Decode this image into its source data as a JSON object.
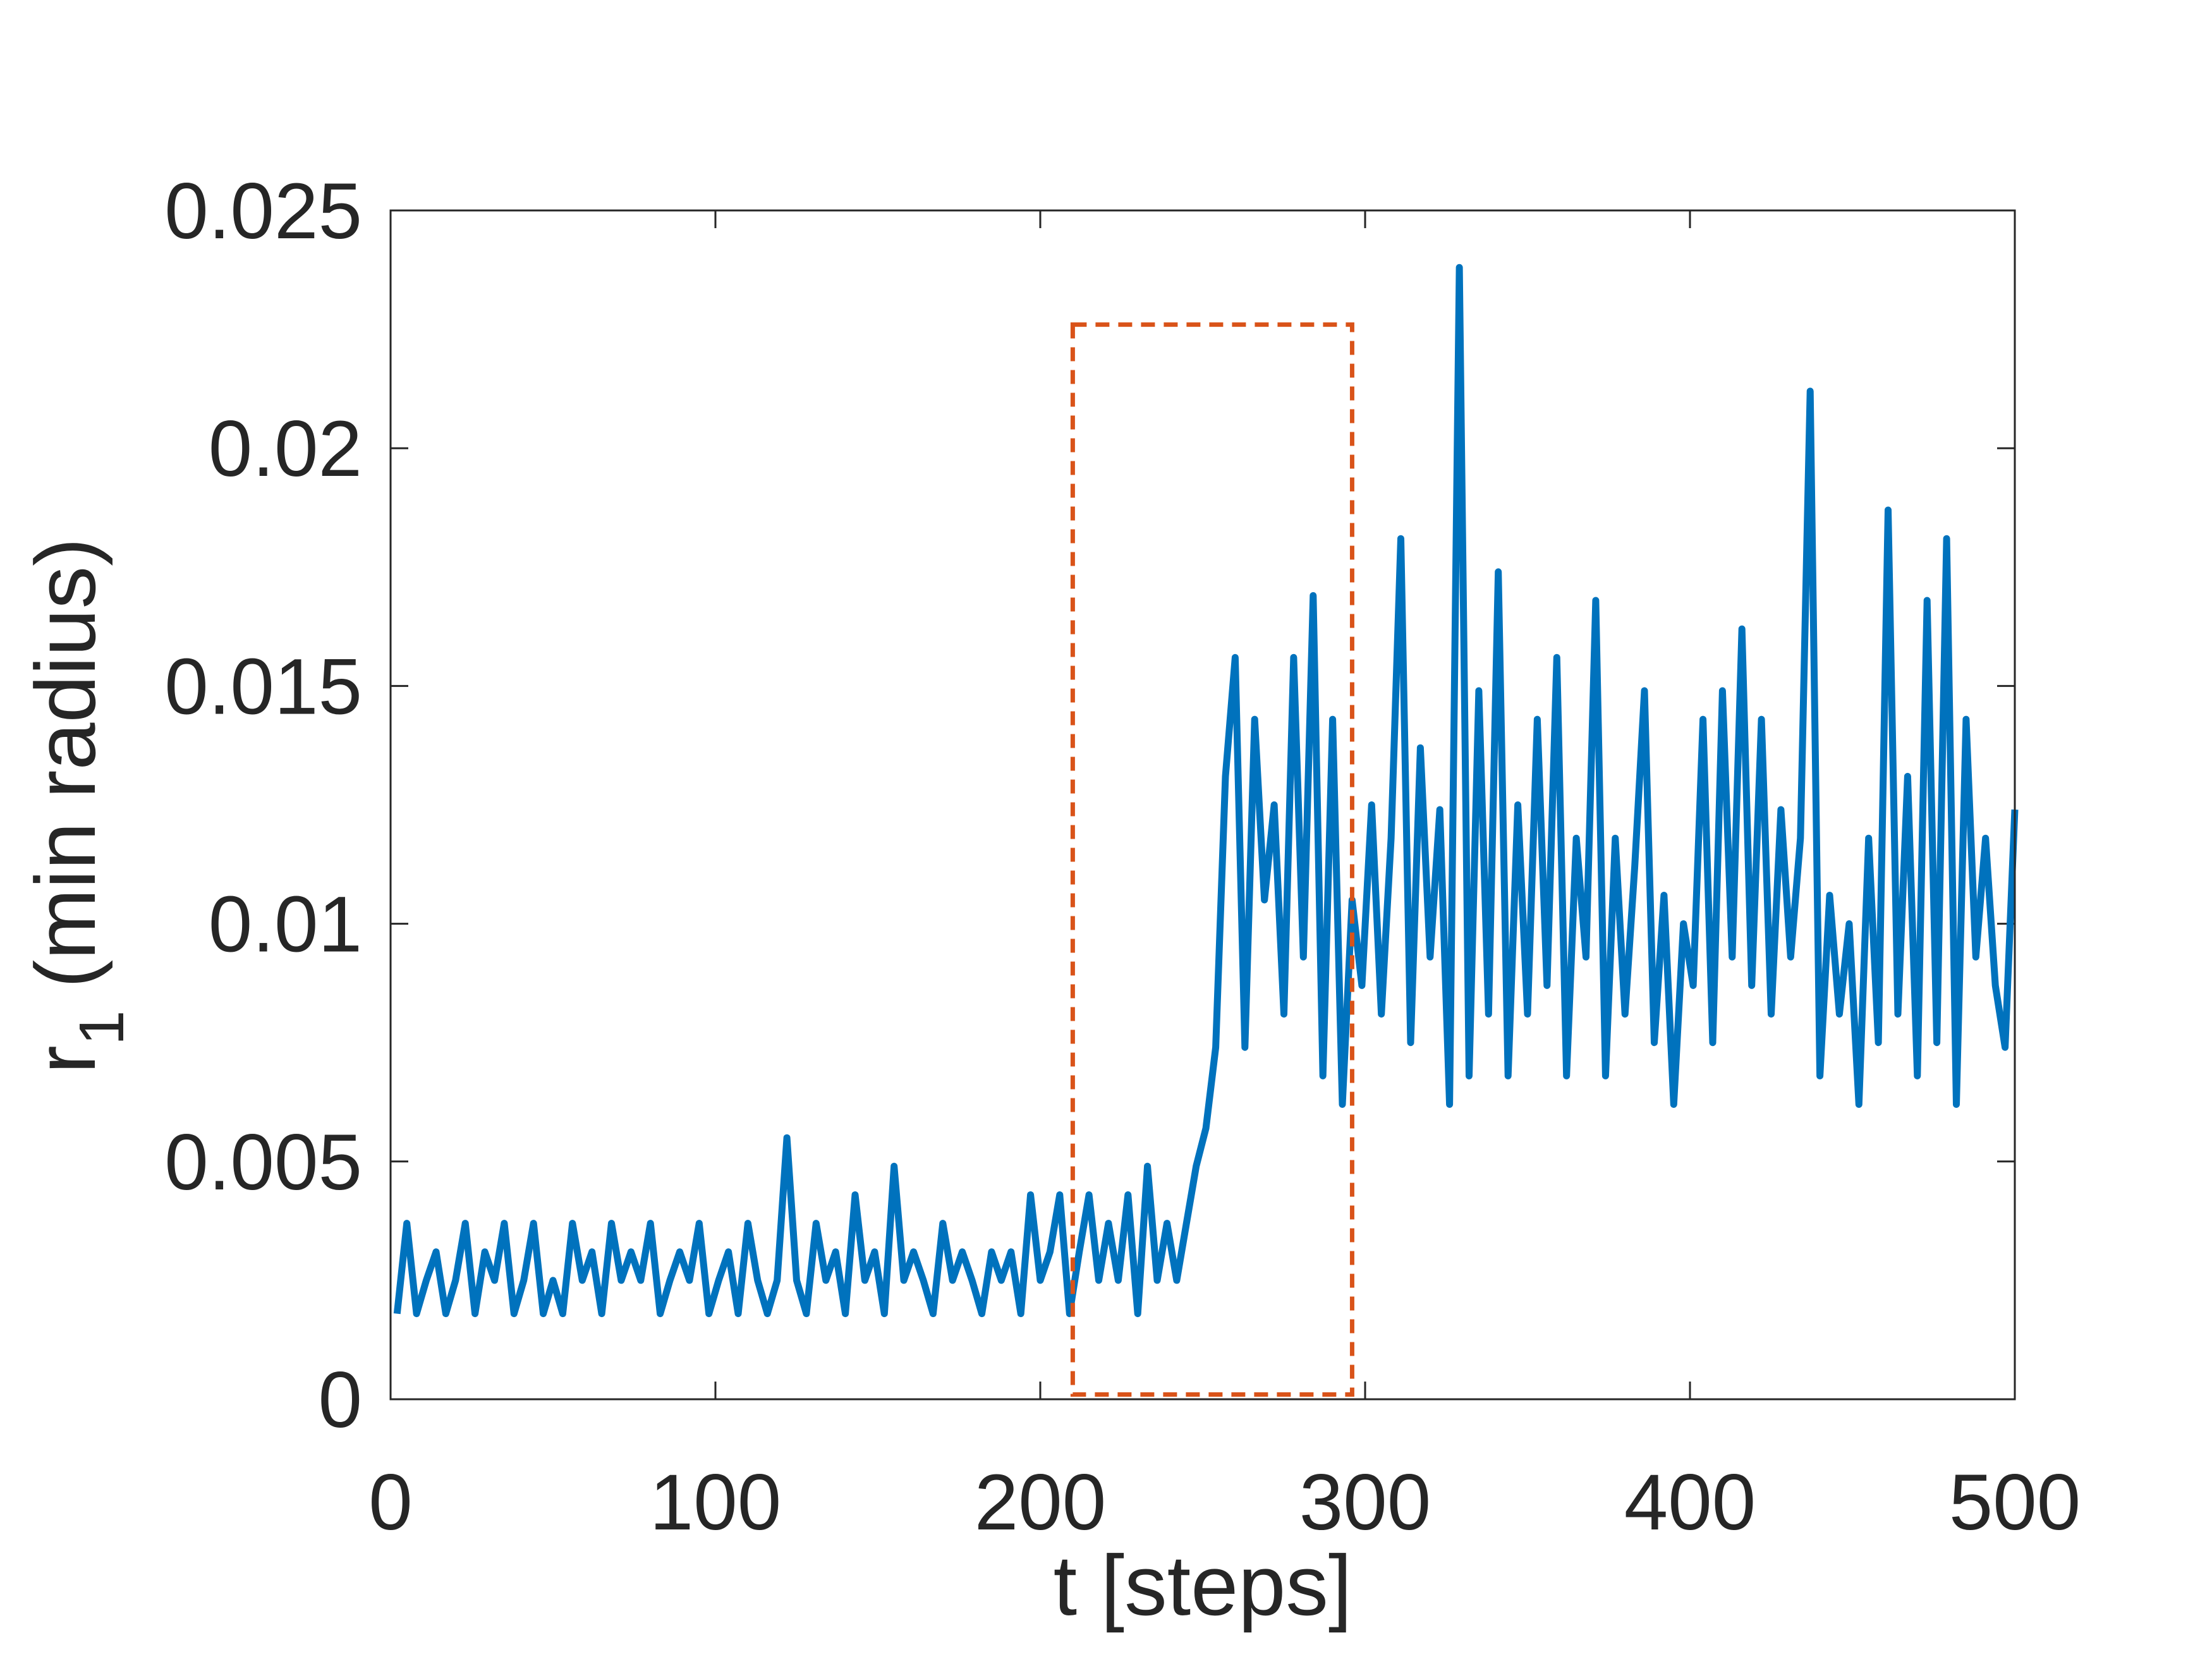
{
  "chart_data": {
    "type": "line",
    "xlabel": "t [steps]",
    "ylabel": "r",
    "ylabel_subscript": "1",
    "ylabel_suffix": "(min radius)",
    "xlim": [
      0,
      500
    ],
    "xticks": [
      0,
      100,
      200,
      300,
      400,
      500
    ],
    "ylim": [
      0,
      0.025
    ],
    "yticks": [
      0,
      0.005,
      0.01,
      0.015,
      0.02,
      0.025
    ],
    "highlight": {
      "xlim": [
        210,
        296
      ],
      "ylim": [
        0.0001,
        0.0226
      ],
      "color": "#d95319"
    },
    "x": [
      2,
      5,
      8,
      11,
      14,
      17,
      20,
      23,
      26,
      29,
      32,
      35,
      38,
      41,
      44,
      47,
      50,
      53,
      56,
      59,
      62,
      65,
      68,
      71,
      74,
      77,
      80,
      83,
      86,
      89,
      92,
      95,
      98,
      101,
      104,
      107,
      110,
      113,
      116,
      119,
      122,
      125,
      128,
      131,
      134,
      137,
      140,
      143,
      146,
      149,
      152,
      155,
      158,
      161,
      164,
      167,
      170,
      173,
      176,
      179,
      182,
      185,
      188,
      191,
      194,
      197,
      200,
      203,
      206,
      209,
      212,
      215,
      218,
      221,
      224,
      227,
      230,
      233,
      236,
      239,
      242,
      245,
      248,
      251,
      254,
      257,
      260,
      263,
      266,
      269,
      272,
      275,
      278,
      281,
      284,
      287,
      290,
      293,
      296,
      299,
      302,
      305,
      308,
      311,
      314,
      317,
      320,
      323,
      326,
      329,
      332,
      335,
      338,
      341,
      344,
      347,
      350,
      353,
      356,
      359,
      362,
      365,
      368,
      371,
      374,
      377,
      380,
      383,
      386,
      389,
      392,
      395,
      398,
      401,
      404,
      407,
      410,
      413,
      416,
      419,
      422,
      425,
      428,
      431,
      434,
      437,
      440,
      443,
      446,
      449,
      452,
      455,
      458,
      461,
      464,
      467,
      470,
      473,
      476,
      479,
      482,
      485,
      488,
      491,
      494,
      497,
      500
    ],
    "series": [
      {
        "color": "#0072bd",
        "values": [
          0.0018,
          0.0037,
          0.0018,
          0.0025,
          0.0031,
          0.0018,
          0.0025,
          0.0037,
          0.0018,
          0.0031,
          0.0025,
          0.0037,
          0.0018,
          0.0025,
          0.0037,
          0.0018,
          0.0025,
          0.0018,
          0.0037,
          0.0025,
          0.0031,
          0.0018,
          0.0037,
          0.0025,
          0.0031,
          0.0025,
          0.0037,
          0.0018,
          0.0025,
          0.0031,
          0.0025,
          0.0037,
          0.0018,
          0.0025,
          0.0031,
          0.0018,
          0.0037,
          0.0025,
          0.0018,
          0.0025,
          0.0055,
          0.0025,
          0.0018,
          0.0037,
          0.0025,
          0.0031,
          0.0018,
          0.0043,
          0.0025,
          0.0031,
          0.0018,
          0.0049,
          0.0025,
          0.0031,
          0.0025,
          0.0018,
          0.0037,
          0.0025,
          0.0031,
          0.0025,
          0.0018,
          0.0031,
          0.0025,
          0.0031,
          0.0018,
          0.0043,
          0.0025,
          0.0031,
          0.0043,
          0.0018,
          0.0031,
          0.0043,
          0.0025,
          0.0037,
          0.0025,
          0.0043,
          0.0018,
          0.0049,
          0.0025,
          0.0037,
          0.0025,
          0.0037,
          0.0049,
          0.0057,
          0.0074,
          0.0131,
          0.0156,
          0.0074,
          0.0143,
          0.0105,
          0.0125,
          0.0081,
          0.0156,
          0.0093,
          0.0169,
          0.0068,
          0.0143,
          0.0062,
          0.0105,
          0.0087,
          0.0125,
          0.0081,
          0.0118,
          0.0181,
          0.0075,
          0.0137,
          0.0093,
          0.0124,
          0.0062,
          0.0238,
          0.0068,
          0.0149,
          0.0081,
          0.0174,
          0.0068,
          0.0125,
          0.0081,
          0.0143,
          0.0087,
          0.0156,
          0.0068,
          0.0118,
          0.0093,
          0.0168,
          0.0068,
          0.0118,
          0.0081,
          0.0112,
          0.0149,
          0.0075,
          0.0106,
          0.0062,
          0.01,
          0.0087,
          0.0143,
          0.0075,
          0.0149,
          0.0093,
          0.0162,
          0.0087,
          0.0143,
          0.0081,
          0.0124,
          0.0093,
          0.0118,
          0.0212,
          0.0068,
          0.0106,
          0.0081,
          0.01,
          0.0062,
          0.0118,
          0.0075,
          0.0187,
          0.0081,
          0.0131,
          0.0068,
          0.0168,
          0.0075,
          0.0181,
          0.0062,
          0.0143,
          0.0093,
          0.0118,
          0.0087,
          0.0074,
          0.0124
        ]
      }
    ]
  }
}
